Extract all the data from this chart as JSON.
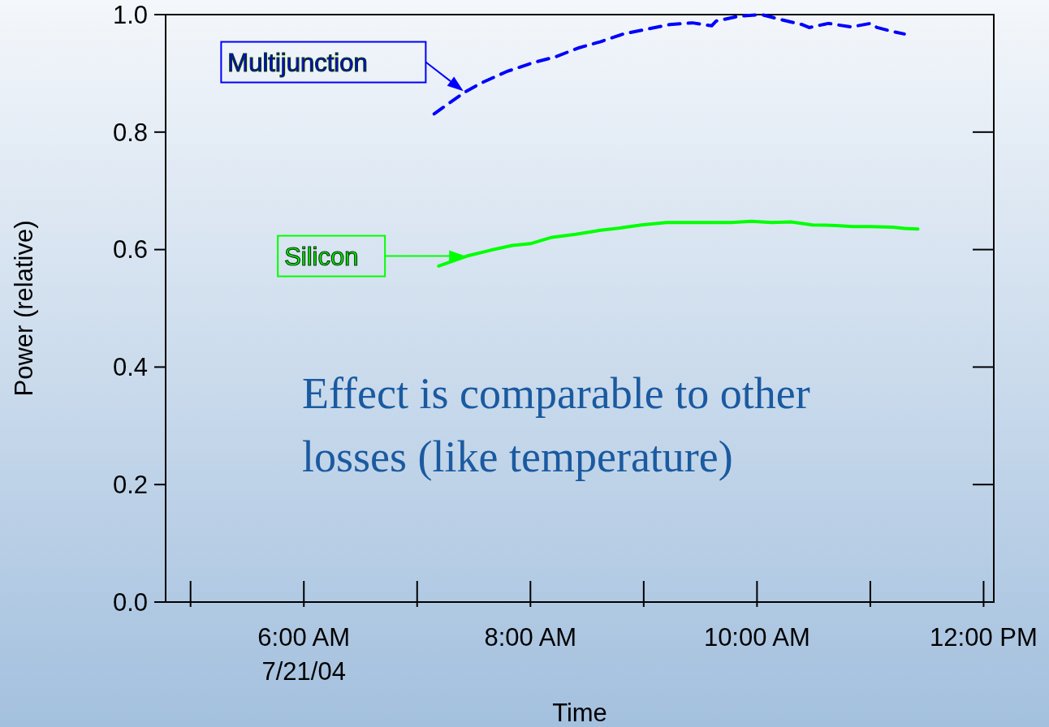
{
  "chart_data": {
    "type": "line",
    "xlabel": "Time",
    "ylabel": "Power (relative)",
    "xlim": [
      4.78,
      12.09
    ],
    "xticks": [
      {
        "value": 5,
        "label": null
      },
      {
        "value": 6,
        "label": "6:00 AM\n7/21/04"
      },
      {
        "value": 7,
        "label": null
      },
      {
        "value": 8,
        "label": "8:00 AM"
      },
      {
        "value": 9,
        "label": null
      },
      {
        "value": 10,
        "label": "10:00 AM"
      },
      {
        "value": 11,
        "label": null
      },
      {
        "value": 12,
        "label": "12:00 PM"
      }
    ],
    "ylim": [
      0,
      1
    ],
    "yticks": [
      {
        "value": 0,
        "label": "0.0"
      },
      {
        "value": 0.2,
        "label": "0.2"
      },
      {
        "value": 0.4,
        "label": "0.4"
      },
      {
        "value": 0.6,
        "label": "0.6"
      },
      {
        "value": 0.8,
        "label": "0.8"
      },
      {
        "value": 1,
        "label": "1.0"
      }
    ],
    "grid": false,
    "legend": "top left",
    "series": [
      {
        "name": "Multijunction",
        "color": "#0000ff",
        "line_style": "dashed",
        "x": [
          7.15,
          7.42,
          7.56,
          7.79,
          8.02,
          8.22,
          8.42,
          8.62,
          8.82,
          9.05,
          9.23,
          9.43,
          9.6,
          9.64,
          9.83,
          10.04,
          10.2,
          10.4,
          10.46,
          10.63,
          10.83,
          11.0,
          11.06,
          11.18,
          11.3
        ],
        "values": [
          0.831,
          0.868,
          0.883,
          0.903,
          0.918,
          0.928,
          0.943,
          0.954,
          0.967,
          0.976,
          0.983,
          0.986,
          0.981,
          0.989,
          0.997,
          1.0,
          0.992,
          0.983,
          0.978,
          0.985,
          0.979,
          0.985,
          0.978,
          0.972,
          0.967
        ]
      },
      {
        "name": "Silicon",
        "color": "#00ff00",
        "line_style": "solid",
        "x": [
          7.19,
          7.44,
          7.65,
          7.84,
          8.0,
          8.19,
          8.4,
          8.62,
          8.8,
          8.98,
          9.2,
          9.41,
          9.6,
          9.77,
          9.95,
          10.13,
          10.3,
          10.49,
          10.7,
          10.85,
          11.0,
          11.2,
          11.3,
          11.42
        ],
        "values": [
          0.572,
          0.589,
          0.599,
          0.607,
          0.61,
          0.621,
          0.626,
          0.633,
          0.637,
          0.642,
          0.646,
          0.646,
          0.646,
          0.646,
          0.648,
          0.646,
          0.647,
          0.642,
          0.641,
          0.639,
          0.639,
          0.638,
          0.636,
          0.635
        ]
      }
    ],
    "annotations": [
      "Effect is comparable to other losses (like temperature)"
    ]
  }
}
